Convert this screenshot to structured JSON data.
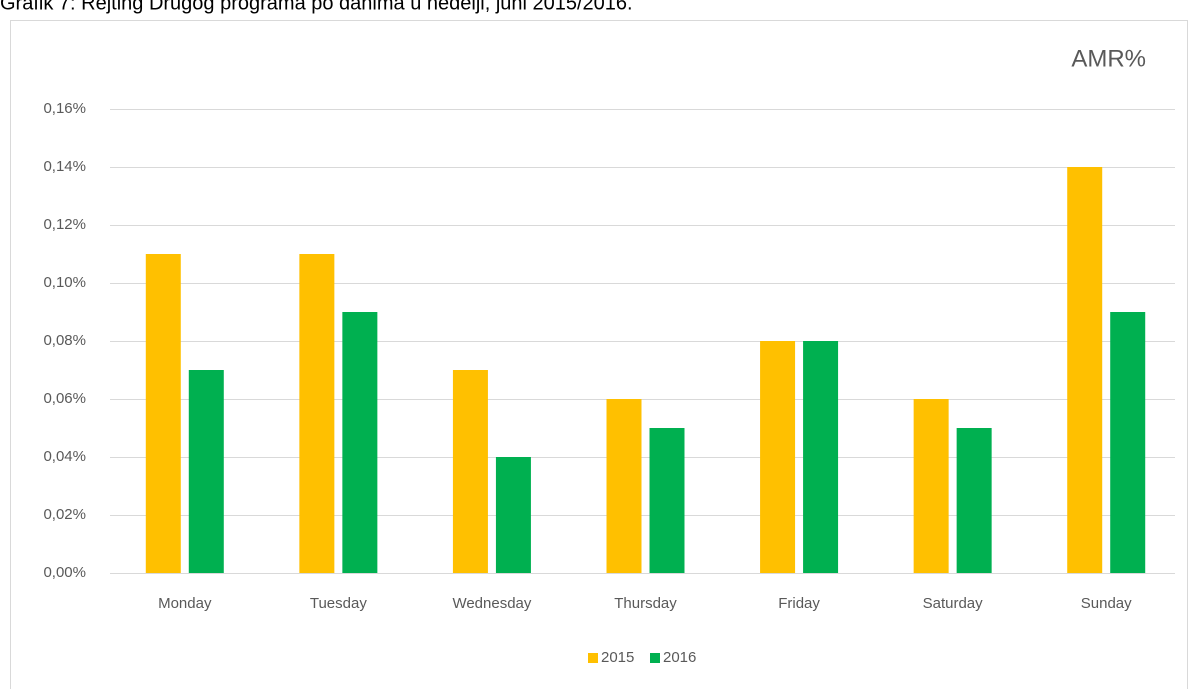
{
  "caption": "Grafik 7: Rejting Drugog programa po danima u nedelji, juni 2015/2016.",
  "chart_data": {
    "type": "bar",
    "title": "AMR%",
    "categories": [
      "Monday",
      "Tuesday",
      "Wednesday",
      "Thursday",
      "Friday",
      "Saturday",
      "Sunday"
    ],
    "series": [
      {
        "name": "2015",
        "color": "#ffc000",
        "values": [
          0.11,
          0.11,
          0.07,
          0.06,
          0.08,
          0.06,
          0.14
        ]
      },
      {
        "name": "2016",
        "color": "#00b050",
        "values": [
          0.07,
          0.09,
          0.04,
          0.05,
          0.08,
          0.05,
          0.09
        ]
      }
    ],
    "ylim": [
      0,
      0.16
    ],
    "yticks": [
      {
        "value": 0,
        "label": "0,00%"
      },
      {
        "value": 0.02,
        "label": "0,02%"
      },
      {
        "value": 0.04,
        "label": "0,04%"
      },
      {
        "value": 0.06,
        "label": "0,06%"
      },
      {
        "value": 0.08,
        "label": "0,08%"
      },
      {
        "value": 0.1,
        "label": "0,10%"
      },
      {
        "value": 0.12,
        "label": "0,12%"
      },
      {
        "value": 0.14,
        "label": "0,14%"
      },
      {
        "value": 0.16,
        "label": "0,16%"
      }
    ],
    "grid": true,
    "legend": "bottom"
  }
}
